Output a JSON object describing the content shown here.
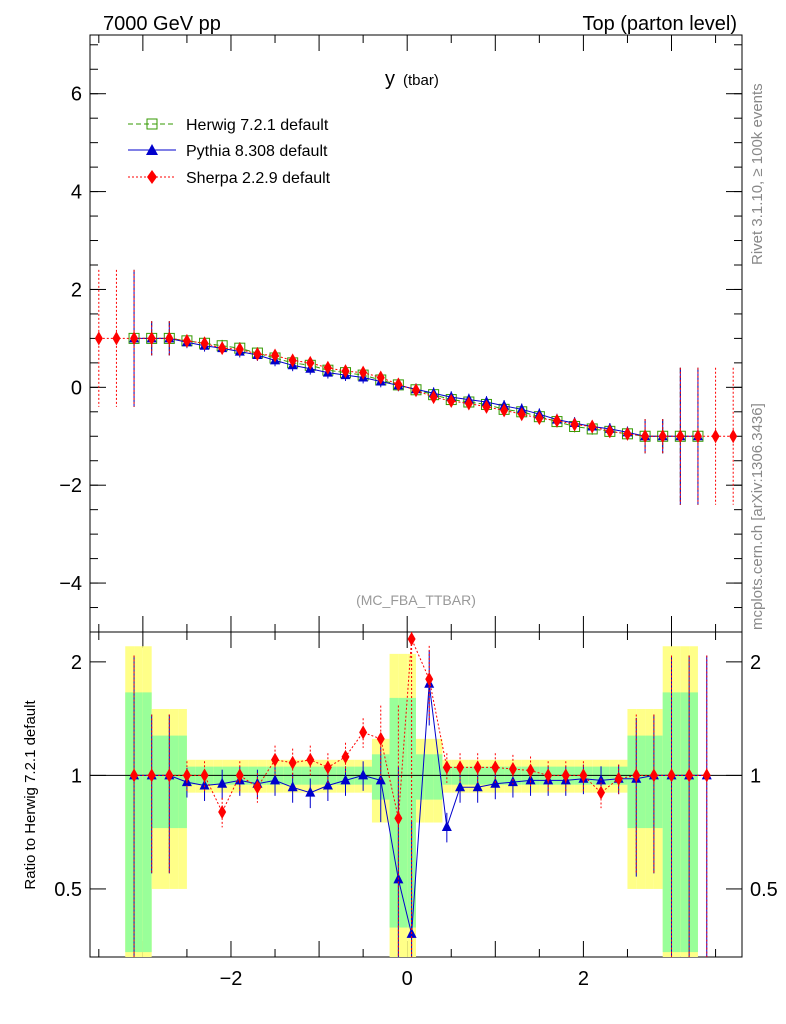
{
  "header": {
    "left_title": "7000 GeV pp",
    "right_title": "Top (parton level)"
  },
  "side_labels": {
    "rivet": "Rivet 3.1.10, ≥ 100k events",
    "mcplots": "mcplots.cern.ch [arXiv:1306.3436]"
  },
  "chart_data": [
    {
      "type": "line",
      "title_main": "y",
      "title_sub": "(tbar)",
      "analysis_tag": "(MC_FBA_TTBAR)",
      "xlim": [
        -3.6,
        3.8
      ],
      "ylim": [
        -5,
        7.2
      ],
      "xticks": [
        -2,
        0,
        2
      ],
      "yticks": [
        -4,
        -2,
        0,
        2,
        4,
        6
      ],
      "xlabel": "",
      "ylabel": "",
      "legend": [
        {
          "name": "Herwig 7.2.1 default",
          "color": "#339900",
          "marker": "open-square",
          "line": "dashed"
        },
        {
          "name": "Pythia 8.308 default",
          "color": "#0000cc",
          "marker": "triangle",
          "line": "solid"
        },
        {
          "name": "Sherpa 2.2.9 default",
          "color": "#ff0000",
          "marker": "diamond",
          "line": "dotted"
        }
      ],
      "series_points": {
        "herwig": [
          [
            -3.1,
            1.0
          ],
          [
            -2.9,
            1.0
          ],
          [
            -2.7,
            1.0
          ],
          [
            -2.5,
            0.95
          ],
          [
            -2.3,
            0.9
          ],
          [
            -2.1,
            0.85
          ],
          [
            -1.9,
            0.8
          ],
          [
            -1.7,
            0.7
          ],
          [
            -1.5,
            0.6
          ],
          [
            -1.3,
            0.5
          ],
          [
            -1.1,
            0.45
          ],
          [
            -0.9,
            0.35
          ],
          [
            -0.7,
            0.3
          ],
          [
            -0.5,
            0.25
          ],
          [
            -0.3,
            0.15
          ],
          [
            -0.1,
            0.05
          ],
          [
            0.1,
            -0.05
          ],
          [
            0.3,
            -0.15
          ],
          [
            0.5,
            -0.25
          ],
          [
            0.7,
            -0.3
          ],
          [
            0.9,
            -0.35
          ],
          [
            1.1,
            -0.45
          ],
          [
            1.3,
            -0.5
          ],
          [
            1.5,
            -0.6
          ],
          [
            1.7,
            -0.7
          ],
          [
            1.9,
            -0.8
          ],
          [
            2.1,
            -0.85
          ],
          [
            2.3,
            -0.9
          ],
          [
            2.5,
            -0.95
          ],
          [
            2.7,
            -1.0
          ],
          [
            2.9,
            -1.0
          ],
          [
            3.1,
            -1.0
          ],
          [
            3.3,
            -1.0
          ]
        ],
        "pythia": [
          [
            -3.1,
            1.0
          ],
          [
            -2.9,
            1.0
          ],
          [
            -2.7,
            1.0
          ],
          [
            -2.5,
            0.92
          ],
          [
            -2.3,
            0.85
          ],
          [
            -2.1,
            0.8
          ],
          [
            -1.9,
            0.73
          ],
          [
            -1.7,
            0.66
          ],
          [
            -1.5,
            0.55
          ],
          [
            -1.3,
            0.45
          ],
          [
            -1.1,
            0.38
          ],
          [
            -0.9,
            0.3
          ],
          [
            -0.7,
            0.25
          ],
          [
            -0.5,
            0.2
          ],
          [
            -0.3,
            0.12
          ],
          [
            -0.1,
            0.04
          ],
          [
            0.1,
            -0.04
          ],
          [
            0.3,
            -0.12
          ],
          [
            0.5,
            -0.2
          ],
          [
            0.7,
            -0.25
          ],
          [
            0.9,
            -0.3
          ],
          [
            1.1,
            -0.38
          ],
          [
            1.3,
            -0.45
          ],
          [
            1.5,
            -0.55
          ],
          [
            1.7,
            -0.66
          ],
          [
            1.9,
            -0.73
          ],
          [
            2.1,
            -0.8
          ],
          [
            2.3,
            -0.85
          ],
          [
            2.5,
            -0.92
          ],
          [
            2.7,
            -1.0
          ],
          [
            2.9,
            -1.0
          ],
          [
            3.1,
            -1.0
          ],
          [
            3.3,
            -1.0
          ]
        ],
        "sherpa": [
          [
            -3.5,
            1.0
          ],
          [
            -3.3,
            1.0
          ],
          [
            -3.1,
            1.0
          ],
          [
            -2.9,
            1.0
          ],
          [
            -2.7,
            1.0
          ],
          [
            -2.5,
            0.95
          ],
          [
            -2.3,
            0.9
          ],
          [
            -2.1,
            0.8
          ],
          [
            -1.9,
            0.78
          ],
          [
            -1.7,
            0.68
          ],
          [
            -1.5,
            0.65
          ],
          [
            -1.3,
            0.55
          ],
          [
            -1.1,
            0.5
          ],
          [
            -0.9,
            0.4
          ],
          [
            -0.7,
            0.33
          ],
          [
            -0.5,
            0.3
          ],
          [
            -0.3,
            0.2
          ],
          [
            -0.1,
            0.06
          ],
          [
            0.1,
            -0.06
          ],
          [
            0.3,
            -0.2
          ],
          [
            0.5,
            -0.28
          ],
          [
            0.7,
            -0.33
          ],
          [
            0.9,
            -0.4
          ],
          [
            1.1,
            -0.47
          ],
          [
            1.3,
            -0.55
          ],
          [
            1.5,
            -0.63
          ],
          [
            1.7,
            -0.68
          ],
          [
            1.9,
            -0.76
          ],
          [
            2.1,
            -0.8
          ],
          [
            2.3,
            -0.9
          ],
          [
            2.5,
            -0.95
          ],
          [
            2.7,
            -1.0
          ],
          [
            2.9,
            -1.0
          ],
          [
            3.1,
            -1.0
          ],
          [
            3.3,
            -1.0
          ],
          [
            3.5,
            -1.0
          ],
          [
            3.7,
            -1.0
          ]
        ]
      }
    },
    {
      "type": "line",
      "ylabel": "Ratio to Herwig 7.2.1 default",
      "ylim_log": [
        0.33,
        2.4
      ],
      "yticks": [
        0.5,
        1,
        2
      ],
      "xticks": [
        -2,
        0,
        2
      ],
      "band_inner_color": "#99ff99",
      "band_outer_color": "#ffff88",
      "ratio_pythia": [
        [
          -3.1,
          1.0
        ],
        [
          -2.9,
          1.0
        ],
        [
          -2.7,
          1.0
        ],
        [
          -2.5,
          0.96
        ],
        [
          -2.3,
          0.94
        ],
        [
          -2.1,
          0.95
        ],
        [
          -1.9,
          0.97
        ],
        [
          -1.7,
          0.95
        ],
        [
          -1.5,
          0.97
        ],
        [
          -1.3,
          0.93
        ],
        [
          -1.1,
          0.9
        ],
        [
          -0.9,
          0.94
        ],
        [
          -0.7,
          0.97
        ],
        [
          -0.5,
          1.0
        ],
        [
          -0.3,
          0.97
        ],
        [
          -0.1,
          0.53
        ],
        [
          0.05,
          0.38
        ],
        [
          0.25,
          1.75
        ],
        [
          0.45,
          0.73
        ],
        [
          0.6,
          0.93
        ],
        [
          0.8,
          0.93
        ],
        [
          1.0,
          0.95
        ],
        [
          1.2,
          0.96
        ],
        [
          1.4,
          0.97
        ],
        [
          1.6,
          0.97
        ],
        [
          1.8,
          0.97
        ],
        [
          2.0,
          0.98
        ],
        [
          2.2,
          0.97
        ],
        [
          2.4,
          0.98
        ],
        [
          2.6,
          0.98
        ],
        [
          2.8,
          1.0
        ],
        [
          3.0,
          1.0
        ],
        [
          3.2,
          1.0
        ],
        [
          3.4,
          1.0
        ]
      ],
      "ratio_sherpa": [
        [
          -3.1,
          1.0
        ],
        [
          -2.9,
          1.0
        ],
        [
          -2.7,
          1.0
        ],
        [
          -2.5,
          1.0
        ],
        [
          -2.3,
          1.0
        ],
        [
          -2.1,
          0.8
        ],
        [
          -1.9,
          1.0
        ],
        [
          -1.7,
          0.93
        ],
        [
          -1.5,
          1.1
        ],
        [
          -1.3,
          1.08
        ],
        [
          -1.1,
          1.1
        ],
        [
          -0.9,
          1.05
        ],
        [
          -0.7,
          1.12
        ],
        [
          -0.5,
          1.3
        ],
        [
          -0.3,
          1.25
        ],
        [
          -0.1,
          0.77
        ],
        [
          0.05,
          2.3
        ],
        [
          0.25,
          1.8
        ],
        [
          0.45,
          1.05
        ],
        [
          0.6,
          1.05
        ],
        [
          0.8,
          1.05
        ],
        [
          1.0,
          1.05
        ],
        [
          1.2,
          1.04
        ],
        [
          1.4,
          1.03
        ],
        [
          1.6,
          1.0
        ],
        [
          1.8,
          1.0
        ],
        [
          2.0,
          1.0
        ],
        [
          2.2,
          0.9
        ],
        [
          2.4,
          0.98
        ],
        [
          2.6,
          1.0
        ],
        [
          2.8,
          1.0
        ],
        [
          3.0,
          1.0
        ],
        [
          3.2,
          1.0
        ],
        [
          3.4,
          1.0
        ]
      ]
    }
  ]
}
